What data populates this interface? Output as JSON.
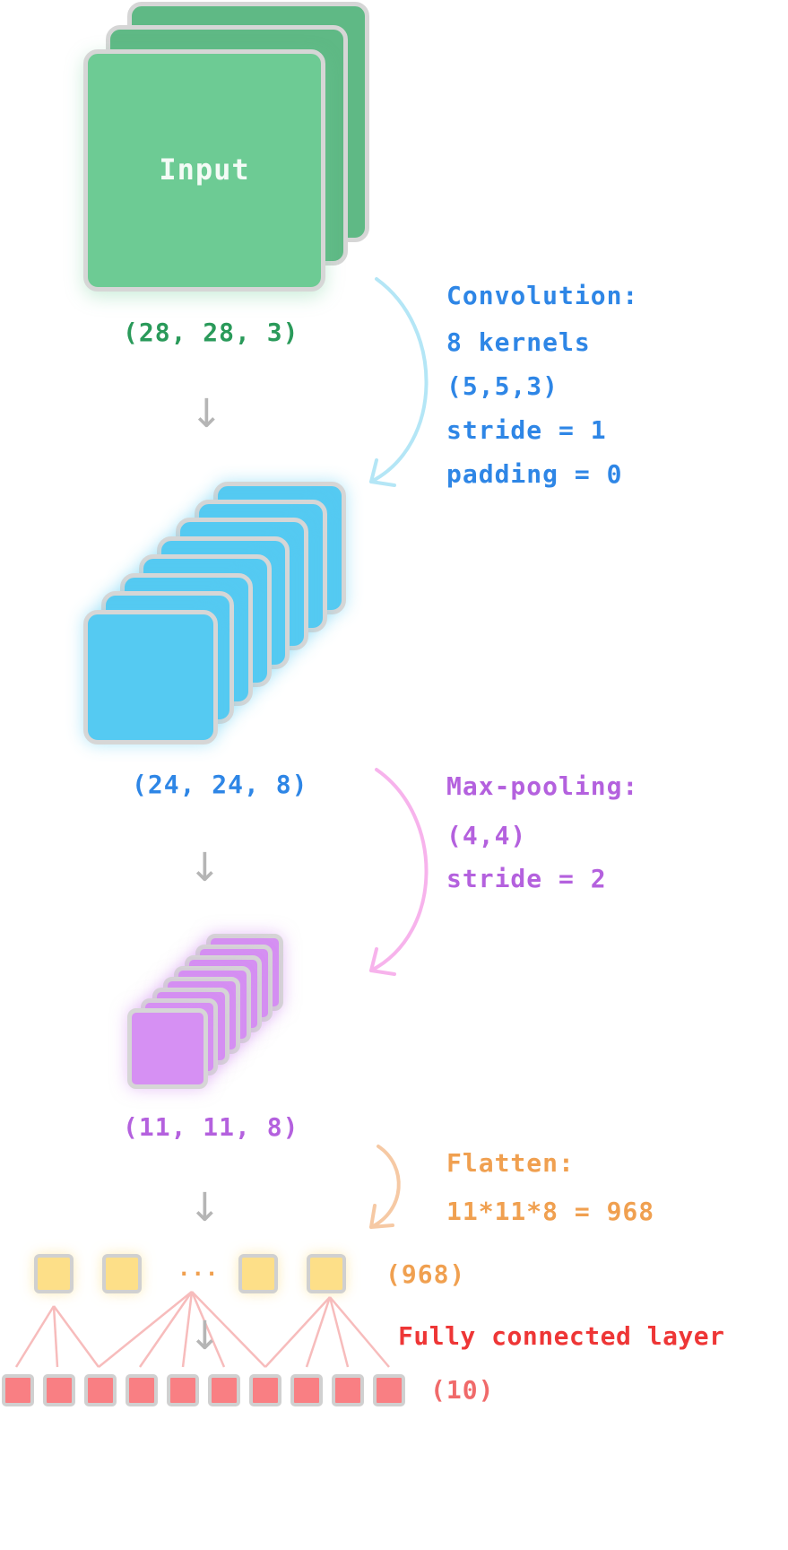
{
  "input": {
    "label": "Input",
    "shape": "(28, 28, 3)"
  },
  "convolution": {
    "title": "Convolution:",
    "lines": [
      "8 kernels",
      "(5,5,3)",
      "stride = 1",
      "padding = 0"
    ],
    "output_shape": "(24, 24, 8)"
  },
  "maxpool": {
    "title": "Max-pooling:",
    "lines": [
      "(4,4)",
      "stride = 2"
    ],
    "output_shape": "(11, 11, 8)"
  },
  "flatten": {
    "title": "Flatten:",
    "formula": "11*11*8 = 968",
    "ellipsis": "...",
    "output_shape": "(968)"
  },
  "fully_connected": {
    "title": "Fully connected layer",
    "output_shape": "(10)"
  },
  "colors": {
    "input": "#6dcb94",
    "conv": "#55caf2",
    "pool": "#d690f3",
    "flatten": "#fddf88",
    "output": "#f97f83"
  },
  "icons": [
    "down-arrow-icon",
    "curved-arrow-icon"
  ]
}
